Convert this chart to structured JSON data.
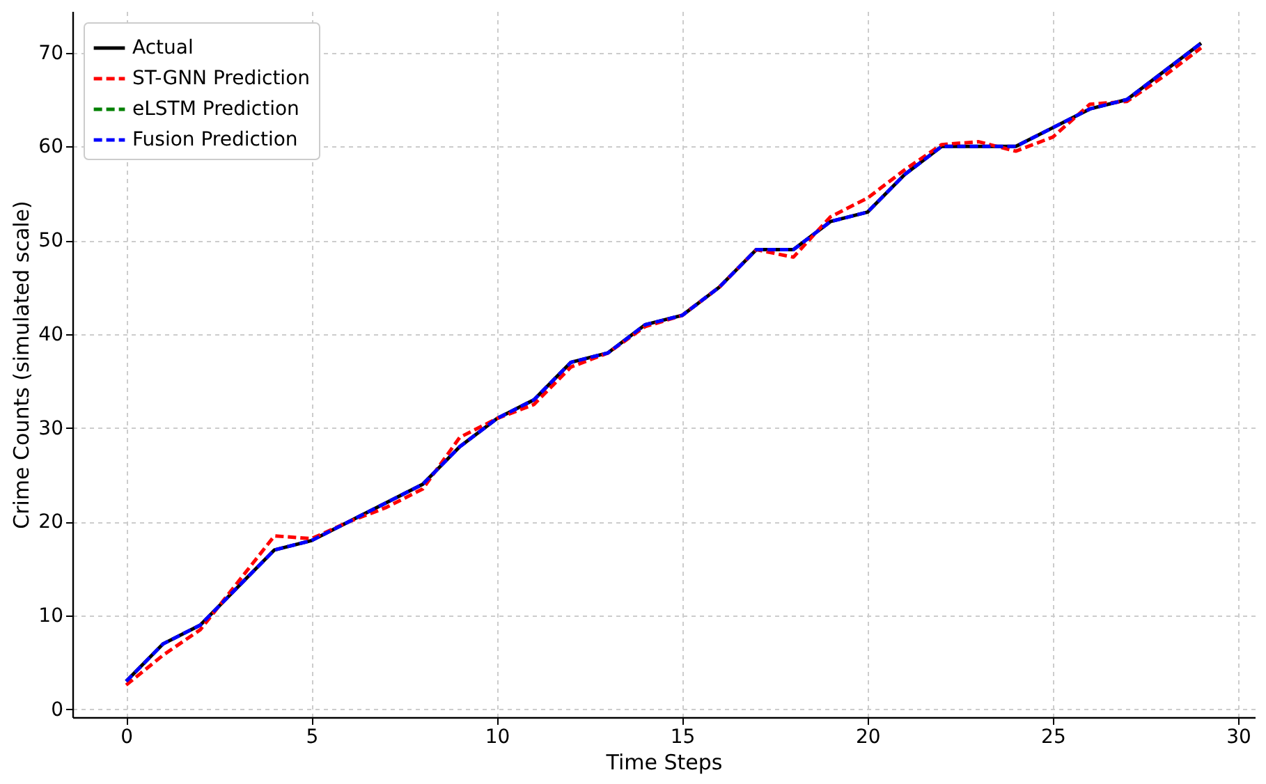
{
  "chart_data": {
    "type": "line",
    "xlabel": "Time Steps",
    "ylabel": "Crime Counts (simulated scale)",
    "x": [
      0,
      1,
      2,
      3,
      4,
      5,
      6,
      7,
      8,
      9,
      10,
      11,
      12,
      13,
      14,
      15,
      16,
      17,
      18,
      19,
      20,
      21,
      22,
      23,
      24,
      25,
      26,
      27,
      28,
      29
    ],
    "series": [
      {
        "name": "Actual",
        "color": "#000000",
        "line_style": "solid",
        "values": [
          3,
          7,
          9,
          13,
          17,
          18,
          20,
          22,
          24,
          28,
          31,
          33,
          37,
          38,
          41,
          42,
          45,
          49,
          49,
          52,
          53,
          57,
          60,
          60,
          60,
          62,
          64,
          65,
          68,
          71
        ]
      },
      {
        "name": "ST-GNN Prediction",
        "color": "#ff0000",
        "line_style": "dashed",
        "values": [
          2.6,
          5.8,
          8.5,
          13.5,
          18.5,
          18.2,
          20,
          21.5,
          23.5,
          29,
          31,
          32.5,
          36.5,
          38,
          40.8,
          42,
          45,
          49,
          48.2,
          52.5,
          54.5,
          57.5,
          60.2,
          60.5,
          59.5,
          61,
          64.5,
          64.8,
          67.5,
          70.5
        ]
      },
      {
        "name": "eLSTM Prediction",
        "color": "#008000",
        "line_style": "dashed",
        "values": [
          null,
          null,
          null,
          null,
          null,
          null,
          null,
          null,
          null,
          null,
          null,
          null,
          null,
          null,
          null,
          null,
          null,
          null,
          null,
          null,
          null,
          null,
          null,
          null,
          null,
          null,
          null,
          null,
          null,
          null
        ]
      },
      {
        "name": "Fusion Prediction",
        "color": "#0000ff",
        "line_style": "dashed",
        "values": [
          3,
          7,
          9,
          13,
          17,
          18,
          20,
          22,
          24,
          28,
          31,
          33,
          37,
          38,
          41,
          42,
          45,
          49,
          49,
          52,
          53,
          57,
          60,
          60,
          60,
          62,
          64,
          65,
          68,
          71
        ]
      }
    ],
    "xlim": [
      -1.45,
      30.45
    ],
    "xticks": [
      0,
      5,
      10,
      15,
      20,
      25,
      30
    ],
    "ylim": [
      -0.82,
      74.42
    ],
    "yticks": [
      0,
      10,
      20,
      30,
      40,
      50,
      60,
      70
    ],
    "grid": true,
    "legend": "top left",
    "marker": "none"
  }
}
